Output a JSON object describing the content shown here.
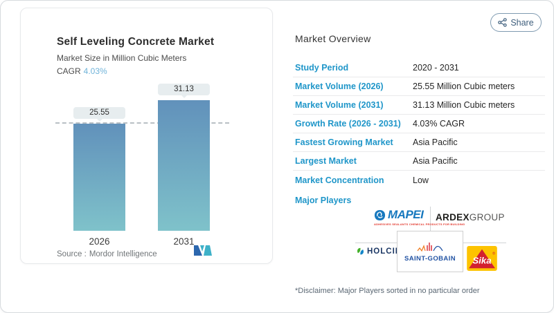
{
  "page": {
    "share_label": "Share"
  },
  "chart_card": {
    "title": "Self Leveling Concrete Market",
    "subtitle": "Market Size in Million Cubic Meters",
    "cagr_label": "CAGR",
    "cagr_value": "4.03%",
    "source_label": "Source :",
    "source_name": "Mordor Intelligence"
  },
  "chart_data": {
    "type": "bar",
    "categories": [
      "2026",
      "2031"
    ],
    "values": [
      25.55,
      31.13
    ],
    "value_labels": [
      "25.55",
      "31.13"
    ],
    "title": "Self Leveling Concrete Market",
    "ylabel": "Market Size in Million Cubic Meters",
    "ylim": [
      0,
      35
    ],
    "reference_line": 25.55,
    "grid": false,
    "bar_color_top": "#6191bb",
    "bar_color_bottom": "#7fc2ca"
  },
  "overview": {
    "heading": "Market Overview",
    "rows": [
      {
        "label": "Study Period",
        "value": "2020 - 2031"
      },
      {
        "label": "Market Volume (2026)",
        "value": "25.55 Million Cubic meters"
      },
      {
        "label": "Market Volume (2031)",
        "value": "31.13 Million Cubic meters"
      },
      {
        "label": "Growth Rate (2026 - 2031)",
        "value": "4.03% CAGR"
      },
      {
        "label": "Fastest Growing Market",
        "value": "Asia Pacific"
      },
      {
        "label": "Largest Market",
        "value": "Asia Pacific"
      },
      {
        "label": "Market Concentration",
        "value": "Low"
      }
    ],
    "major_players_label": "Major Players",
    "disclaimer": "*Disclaimer: Major Players sorted in no particular order"
  },
  "players": {
    "mapei": {
      "name": "MAPEI",
      "tagline": "ADHESIVES SEALANTS CHEMICAL PRODUCTS FOR BUILDING"
    },
    "ardex": {
      "bold": "ARDEX",
      "regular": "GROUP"
    },
    "holcim": {
      "name": "HOLCIM"
    },
    "saint_gobain": {
      "name": "SAINT-GOBAIN"
    },
    "sika": {
      "name": "Sika",
      "reg": "®"
    }
  },
  "icons": {
    "share": "share-nodes-icon",
    "mordor_logo": "mordor-intelligence-logo",
    "mapei_badge": "mapei-badge-icon",
    "holcim_leaf": "holcim-leaf-icon",
    "saint_gobain_skyline": "saint-gobain-skyline-icon"
  },
  "colors": {
    "accent_blue": "#1f96c9",
    "cagr_blue": "#6fb3d9",
    "bar_top": "#6191bb",
    "bar_bottom": "#7fc2ca"
  }
}
